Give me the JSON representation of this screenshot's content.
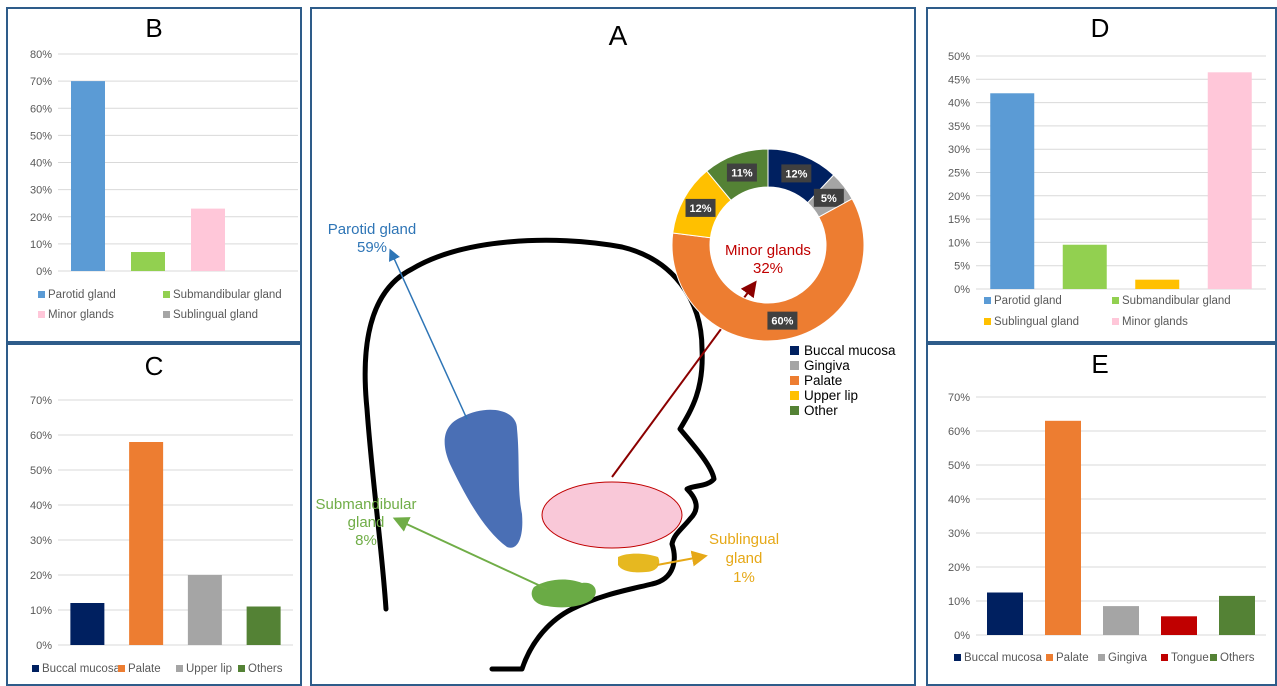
{
  "panels": {
    "A": {
      "letter": "A",
      "parotid_label": "Parotid gland",
      "parotid_pct": "59%",
      "submandibular_label_1": "Submandibular",
      "submandibular_label_2": "gland",
      "submandibular_pct": "8%",
      "sublingual_label_1": "Sublingual",
      "sublingual_label_2": "gland",
      "sublingual_pct": "1%",
      "minor_label": "Minor glands",
      "minor_pct": "32%",
      "colors": {
        "parotid": "#4a6fb5",
        "submandibular": "#6aab45",
        "sublingual": "#e6b820",
        "minor": "#f9c8d8",
        "parotid_text": "#2e75b6",
        "submandibular_text": "#70ad47",
        "sublingual_text": "#e6a817",
        "minor_text": "#c00000"
      }
    },
    "B": {
      "letter": "B"
    },
    "C": {
      "letter": "C"
    },
    "D": {
      "letter": "D"
    },
    "E": {
      "letter": "E"
    }
  },
  "chart_data": [
    {
      "id": "B",
      "type": "bar",
      "categories": [
        "Parotid gland",
        "Submandibular gland",
        "Minor glands",
        "Sublingual gland"
      ],
      "values": [
        70,
        7,
        23,
        0
      ],
      "colors": [
        "#5b9bd5",
        "#92d050",
        "#ffc7d9",
        "#a5a5a5"
      ],
      "ylim": [
        0,
        80
      ],
      "yticks": [
        "0%",
        "10%",
        "20%",
        "30%",
        "40%",
        "50%",
        "60%",
        "70%",
        "80%"
      ],
      "legend": [
        "Parotid gland",
        "Submandibular gland",
        "Minor glands",
        "Sublingual gland"
      ],
      "grid": true
    },
    {
      "id": "C",
      "type": "bar",
      "categories": [
        "Buccal mucosa",
        "Palate",
        "Upper lip",
        "Others"
      ],
      "values": [
        12,
        58,
        20,
        11
      ],
      "colors": [
        "#002060",
        "#ed7d31",
        "#a5a5a5",
        "#548235"
      ],
      "ylim": [
        0,
        70
      ],
      "yticks": [
        "0%",
        "10%",
        "20%",
        "30%",
        "40%",
        "50%",
        "60%",
        "70%"
      ],
      "legend": [
        "Buccal mucosa",
        "Palate",
        "Upper lip",
        "Others"
      ],
      "grid": true
    },
    {
      "id": "D",
      "type": "bar",
      "categories": [
        "Parotid gland",
        "Submandibular gland",
        "Sublingual gland",
        "Minor glands"
      ],
      "values": [
        42,
        9.5,
        2,
        46.5
      ],
      "colors": [
        "#5b9bd5",
        "#92d050",
        "#ffc000",
        "#ffc7d9"
      ],
      "ylim": [
        0,
        50
      ],
      "yticks": [
        "0%",
        "5%",
        "10%",
        "15%",
        "20%",
        "25%",
        "30%",
        "35%",
        "40%",
        "45%",
        "50%"
      ],
      "legend": [
        "Parotid gland",
        "Submandibular gland",
        "Sublingual gland",
        "Minor glands"
      ],
      "grid": true
    },
    {
      "id": "E",
      "type": "bar",
      "categories": [
        "Buccal mucosa",
        "Palate",
        "Gingiva",
        "Tongue",
        "Others"
      ],
      "values": [
        12.5,
        63,
        8.5,
        5.5,
        11.5
      ],
      "colors": [
        "#002060",
        "#ed7d31",
        "#a5a5a5",
        "#c00000",
        "#548235"
      ],
      "ylim": [
        0,
        70
      ],
      "yticks": [
        "0%",
        "10%",
        "20%",
        "30%",
        "40%",
        "50%",
        "60%",
        "70%"
      ],
      "legend": [
        "Buccal mucosa",
        "Palate",
        "Gingiva",
        "Tongue",
        "Others"
      ],
      "grid": true
    },
    {
      "id": "A-donut",
      "type": "pie",
      "categories": [
        "Buccal mucosa",
        "Gingiva",
        "Palate",
        "Upper lip",
        "Other"
      ],
      "values": [
        12,
        5,
        60,
        12,
        11
      ],
      "labels": [
        "12%",
        "5%",
        "60%",
        "12%",
        "11%"
      ],
      "colors": [
        "#002060",
        "#a5a5a5",
        "#ed7d31",
        "#ffc000",
        "#548235"
      ],
      "legend": [
        "Buccal mucosa",
        "Gingiva",
        "Palate",
        "Upper lip",
        "Other"
      ]
    }
  ]
}
